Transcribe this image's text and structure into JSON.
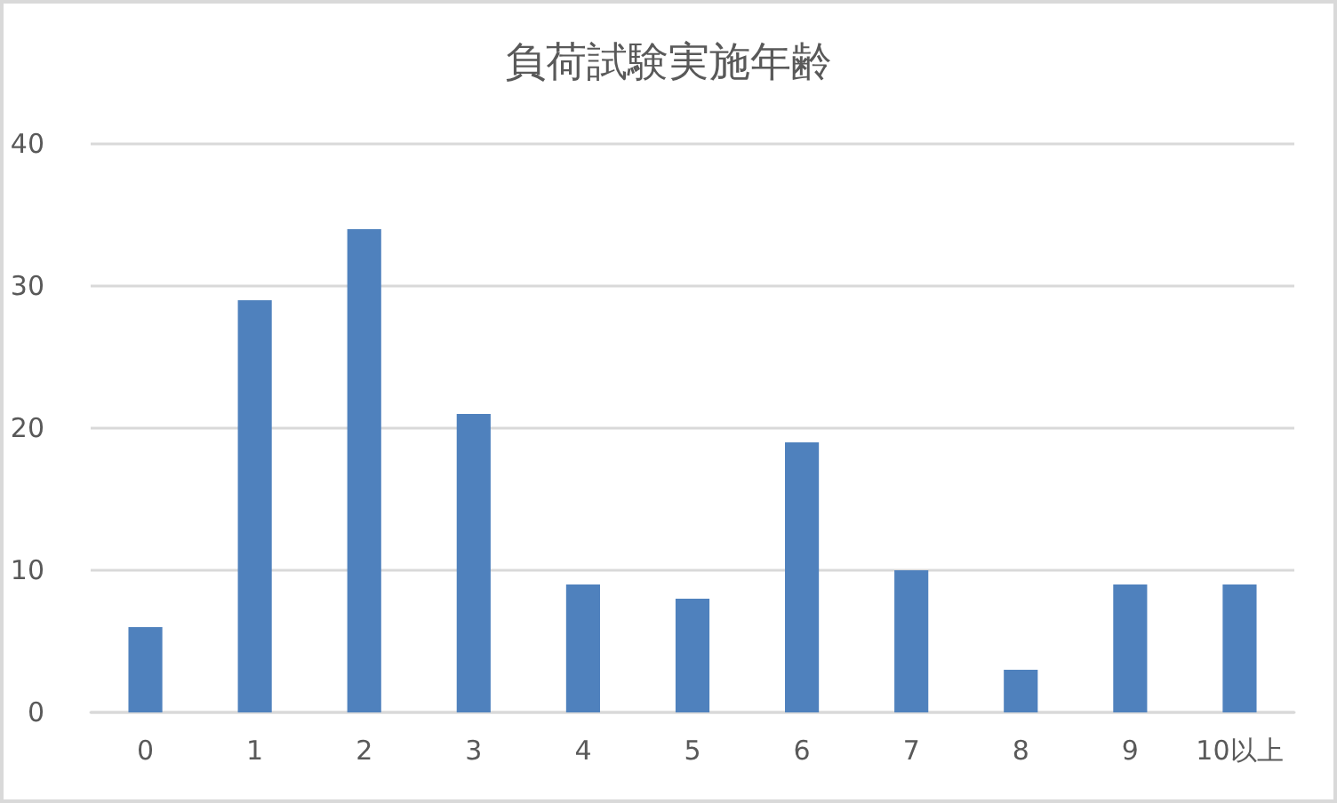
{
  "chart_data": {
    "type": "bar",
    "title": "負荷試験実施年齢",
    "categories": [
      "0",
      "1",
      "2",
      "3",
      "4",
      "5",
      "6",
      "7",
      "8",
      "9",
      "10以上"
    ],
    "values": [
      6,
      29,
      34,
      21,
      9,
      8,
      19,
      10,
      3,
      9,
      9
    ],
    "color": "#4f81bd",
    "ylim": [
      0,
      40
    ],
    "yticks": [
      0,
      10,
      20,
      30,
      40
    ],
    "grid": "y"
  }
}
